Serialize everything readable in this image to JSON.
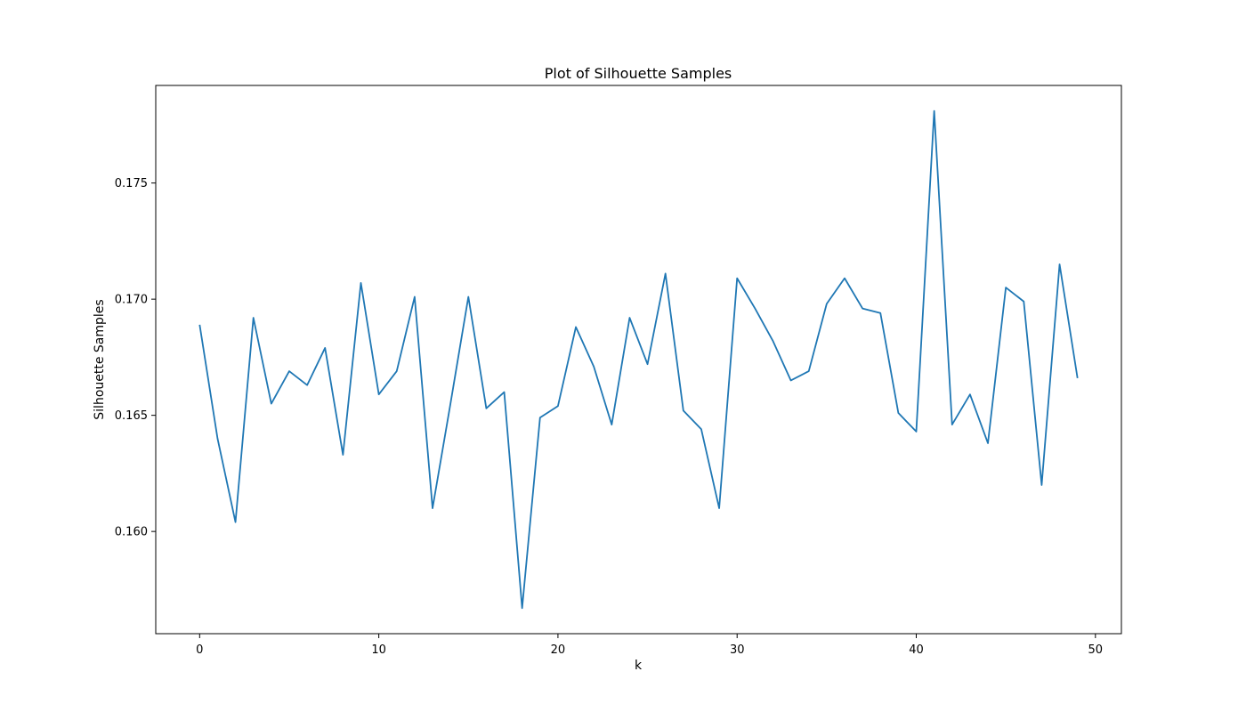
{
  "chart_data": {
    "type": "line",
    "title": "Plot of Silhouette Samples",
    "xlabel": "k",
    "ylabel": "Silhouette Samples",
    "x": [
      0,
      1,
      2,
      3,
      4,
      5,
      6,
      7,
      8,
      9,
      10,
      11,
      12,
      13,
      14,
      15,
      16,
      17,
      18,
      19,
      20,
      21,
      22,
      23,
      24,
      25,
      26,
      27,
      28,
      29,
      30,
      31,
      32,
      33,
      34,
      35,
      36,
      37,
      38,
      39,
      40,
      41,
      42,
      43,
      44,
      45,
      46,
      47,
      48,
      49
    ],
    "series": [
      {
        "values": [
          0.1689,
          0.164,
          0.1604,
          0.1692,
          0.1655,
          0.1669,
          0.1663,
          0.1679,
          0.1633,
          0.1707,
          0.1659,
          0.1669,
          0.1701,
          0.161,
          0.1655,
          0.1701,
          0.1653,
          0.166,
          0.1567,
          0.1649,
          0.1654,
          0.1688,
          0.1671,
          0.1646,
          0.1692,
          0.1672,
          0.1711,
          0.1652,
          0.1644,
          0.161,
          0.1709,
          0.1696,
          0.1682,
          0.1665,
          0.1669,
          0.1698,
          0.1709,
          0.1696,
          0.1694,
          0.1651,
          0.1643,
          0.1781,
          0.1646,
          0.1659,
          0.1638,
          0.1705,
          0.1699,
          0.162,
          0.1715,
          0.1666
        ],
        "color": "#1f77b4"
      }
    ],
    "xlim": [
      -2.45,
      51.45
    ],
    "ylim": [
      0.1556,
      0.1792
    ],
    "xticks": [
      0,
      10,
      20,
      30,
      40,
      50
    ],
    "xtick_labels": [
      "0",
      "10",
      "20",
      "30",
      "40",
      "50"
    ],
    "yticks": [
      0.16,
      0.165,
      0.17,
      0.175
    ],
    "ytick_labels": [
      "0.160",
      "0.165",
      "0.170",
      "0.175"
    ],
    "grid": false,
    "legend": false
  }
}
